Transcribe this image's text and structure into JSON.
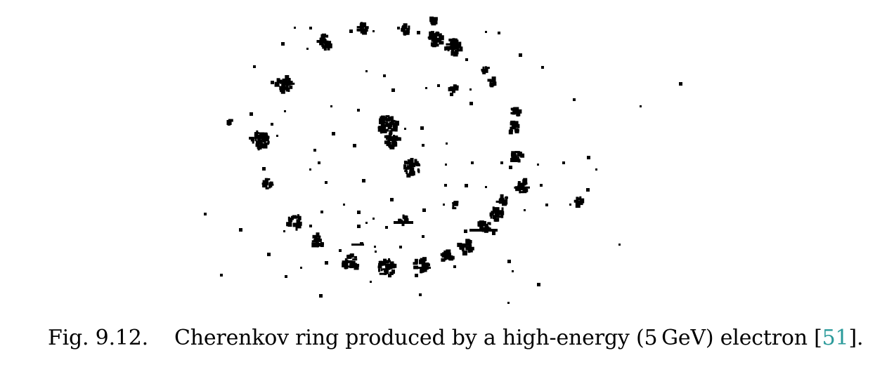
{
  "figure": {
    "label": "Fig. 9.12.",
    "caption_text": "Cherenkov ring produced by a high-energy (5 GeV) electron [",
    "citation": "51",
    "caption_end": "].",
    "colors": {
      "hits": "#000000",
      "background": "#ffffff",
      "citation": "#2a9a9a"
    }
  }
}
